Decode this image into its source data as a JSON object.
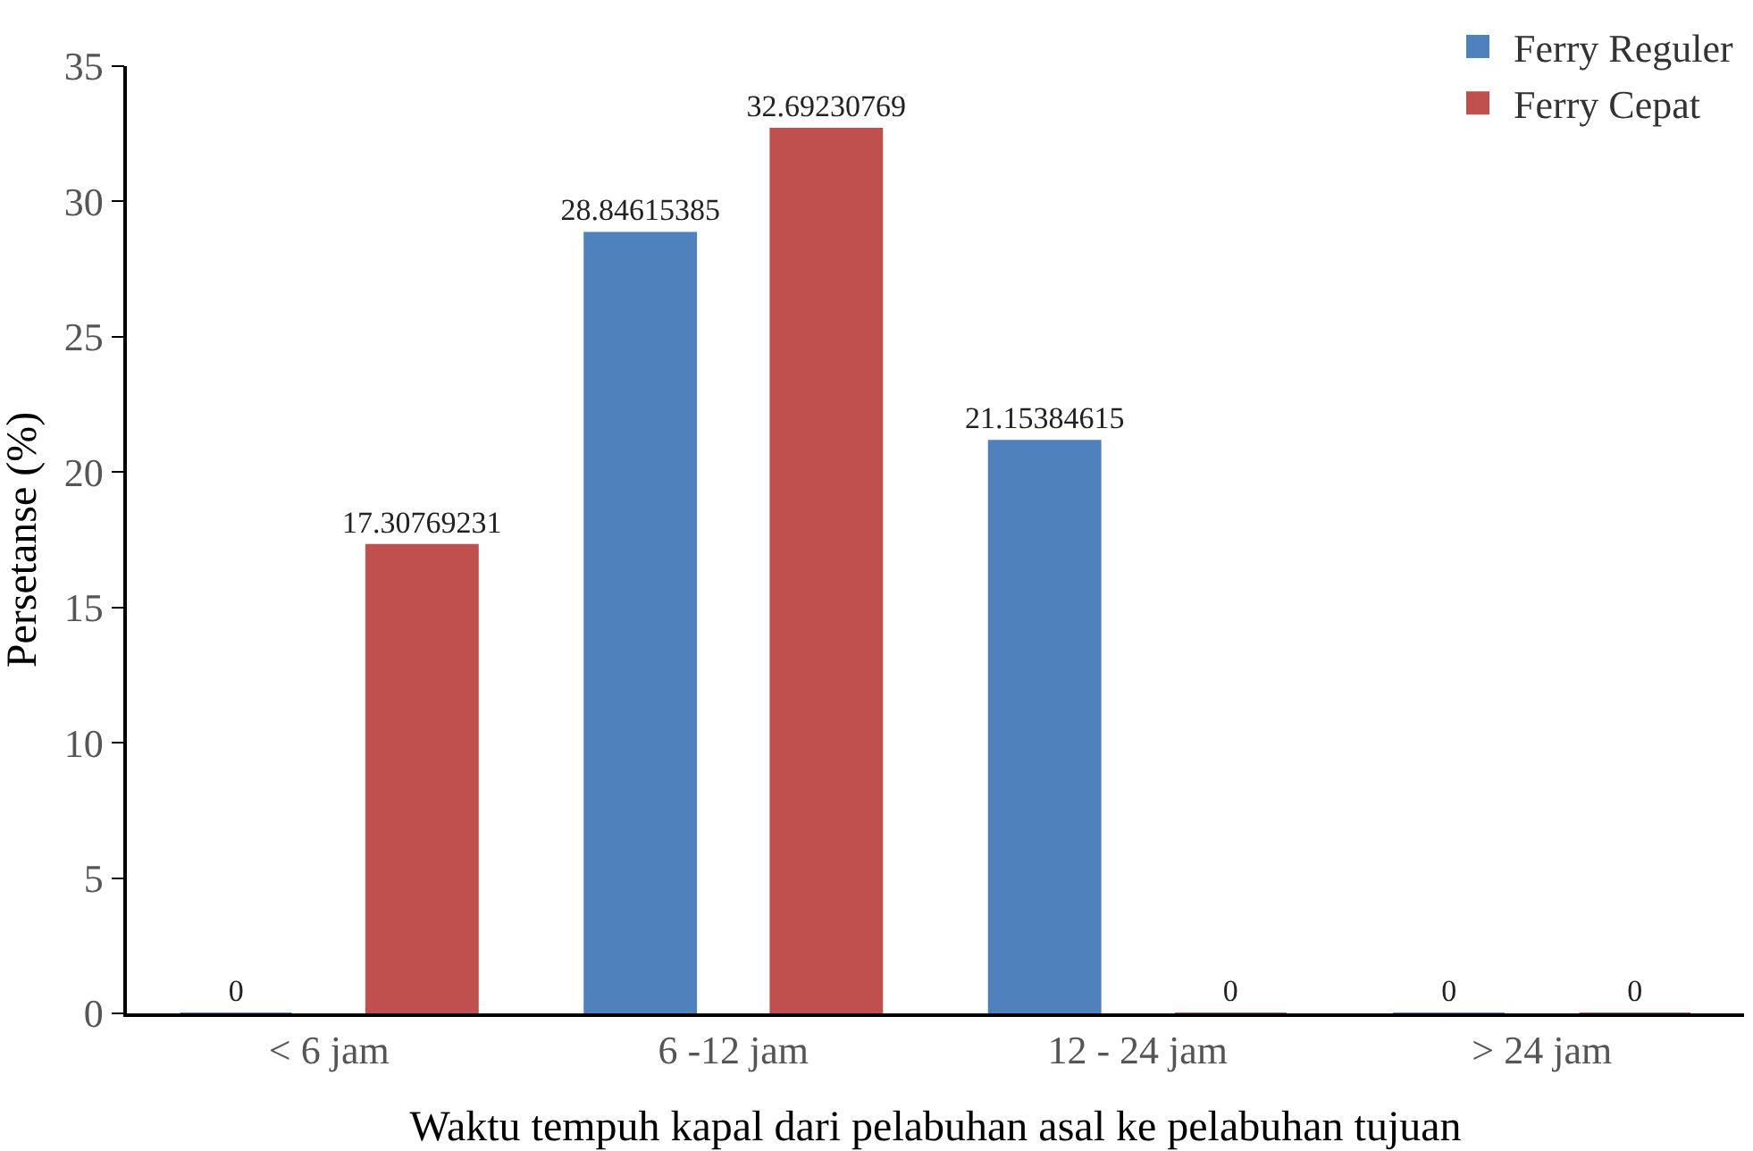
{
  "chart_data": {
    "type": "bar",
    "xlabel": "Waktu tempuh kapal dari pelabuhan asal ke pelabuhan tujuan",
    "ylabel": "Persetanse (%)",
    "categories": [
      "< 6 jam",
      "6 -12 jam",
      "12 - 24 jam",
      "> 24 jam"
    ],
    "series": [
      {
        "name": "Ferry Reguler",
        "color": "#4f81bd",
        "values": [
          0,
          28.84615385,
          21.15384615,
          0
        ]
      },
      {
        "name": "Ferry Cepat",
        "color": "#c0504d",
        "values": [
          17.30769231,
          32.69230769,
          0,
          0
        ]
      }
    ],
    "ylim": [
      0,
      35
    ],
    "yticks": [
      0,
      5,
      10,
      15,
      20,
      25,
      30,
      35
    ],
    "grid": false,
    "legend": "top right",
    "data_labels": true
  }
}
